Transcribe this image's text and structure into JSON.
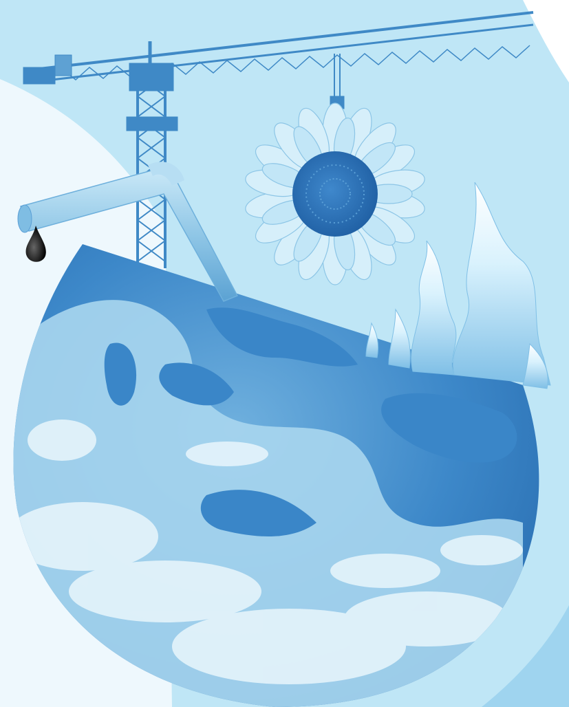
{
  "image": {
    "subject": "climate collage",
    "elements": [
      "background",
      "crane",
      "sunflower",
      "pipe",
      "oil-drop",
      "flames",
      "globe"
    ]
  },
  "colors": {
    "background_light": "#eef8fd",
    "background_band": "#bfe6f6",
    "globe_ocean": "#3a86c8",
    "globe_land": "#a9d6ee",
    "cloud": "#e9f6fc",
    "crane": "#3f89c6",
    "sunflower_center": "#2f78bd",
    "petal": "#d6effa",
    "pipe": "#9fd1ec",
    "flame": "#e6f7fe",
    "oil": "#111111"
  }
}
